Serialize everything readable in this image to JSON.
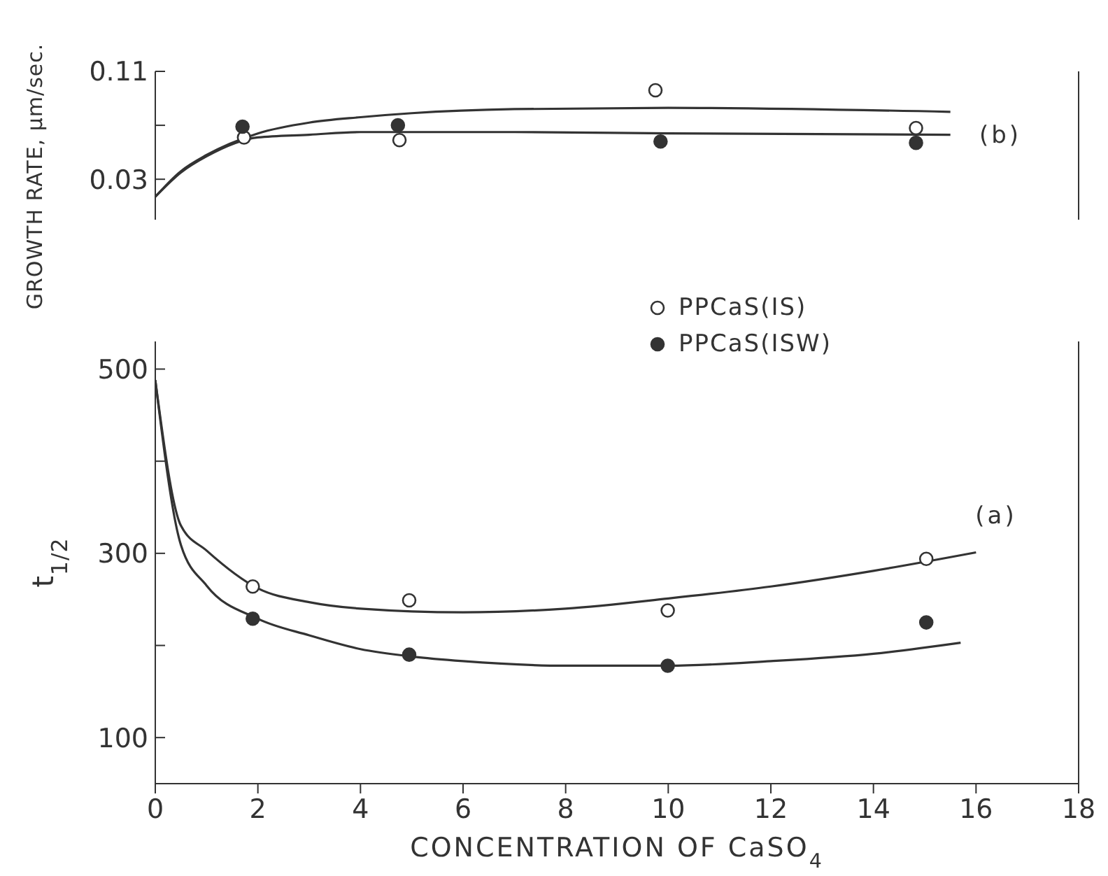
{
  "chart_data": [
    {
      "type": "scatter",
      "ylabel": "GROWTH RATE, μm/sec.",
      "xlim": [
        0,
        18
      ],
      "xticks": [
        0,
        2,
        4,
        6,
        8,
        10,
        12,
        14,
        16,
        18
      ],
      "tick_labels": "y",
      "ylim": [
        0,
        0.11
      ],
      "yticks": [
        0.03,
        {
          "value": 0.07,
          "label": null
        },
        0.11
      ],
      "marker": "circle",
      "legend": "bottom right",
      "grid": false,
      "annotations": [
        "(b)"
      ],
      "series": [
        {
          "name": "PPCaS(IS)",
          "color": "#ffffff",
          "x": [
            1.73,
            4.76,
            9.75,
            14.83
          ],
          "values": [
            0.061,
            0.059,
            0.096,
            0.068
          ]
        },
        {
          "name": "PPCaS(ISW)",
          "color": "#333333",
          "x": [
            1.7,
            4.73,
            9.85,
            14.83
          ],
          "values": [
            0.069,
            0.07,
            0.058,
            0.057
          ]
        },
        {
          "type": "line",
          "marker": "none",
          "color": "#333333",
          "x": [
            0,
            0.5,
            1,
            2,
            3,
            4,
            5,
            7,
            10,
            15.5
          ],
          "values": [
            0.017,
            0.036,
            0.048,
            0.064,
            0.072,
            0.076,
            0.079,
            0.082,
            0.083,
            0.08
          ]
        },
        {
          "type": "line",
          "marker": "none",
          "color": "#333333",
          "x": [
            0,
            0.5,
            1,
            2,
            3,
            4,
            5,
            7,
            10,
            15.5
          ],
          "values": [
            0.017,
            0.035,
            0.047,
            0.061,
            0.063,
            0.065,
            0.065,
            0.065,
            0.064,
            0.063
          ]
        }
      ]
    },
    {
      "type": "scatter",
      "ylabel": "t$_{1/2}$",
      "xlabel": "CONCENTRATION OF CaSO$_{4}$",
      "xlim": [
        0,
        18
      ],
      "xticks": [
        0,
        2,
        4,
        6,
        8,
        10,
        12,
        14,
        16,
        18
      ],
      "ylim": [
        50,
        530
      ],
      "yticks": [
        100,
        {
          "value": 200,
          "label": null
        },
        300,
        {
          "value": 400,
          "label": null
        },
        500
      ],
      "marker": "circle",
      "grid": false,
      "annotations": [
        "(a)"
      ],
      "series": [
        {
          "color": "#ffffff",
          "x": [
            1.9,
            4.95,
            9.99,
            15.03
          ],
          "values": [
            264,
            249,
            238,
            294
          ]
        },
        {
          "color": "#333333",
          "x": [
            1.9,
            4.95,
            9.99,
            15.03
          ],
          "values": [
            229,
            190,
            178,
            225
          ]
        },
        {
          "type": "line",
          "marker": "none",
          "color": "#333333",
          "x": [
            0,
            0.5,
            1,
            2,
            3,
            4,
            6,
            8,
            10,
            12,
            14,
            16
          ],
          "values": [
            488,
            330,
            303,
            262,
            247,
            240,
            236,
            240,
            251,
            264,
            281,
            301
          ]
        },
        {
          "type": "line",
          "marker": "none",
          "color": "#333333",
          "x": [
            0,
            0.5,
            1,
            2,
            3,
            4,
            5,
            6,
            8,
            10,
            12,
            14,
            15.7
          ],
          "values": [
            488,
            309,
            265,
            229,
            211,
            196,
            188,
            183,
            178,
            178,
            183,
            191,
            203
          ]
        }
      ]
    }
  ]
}
